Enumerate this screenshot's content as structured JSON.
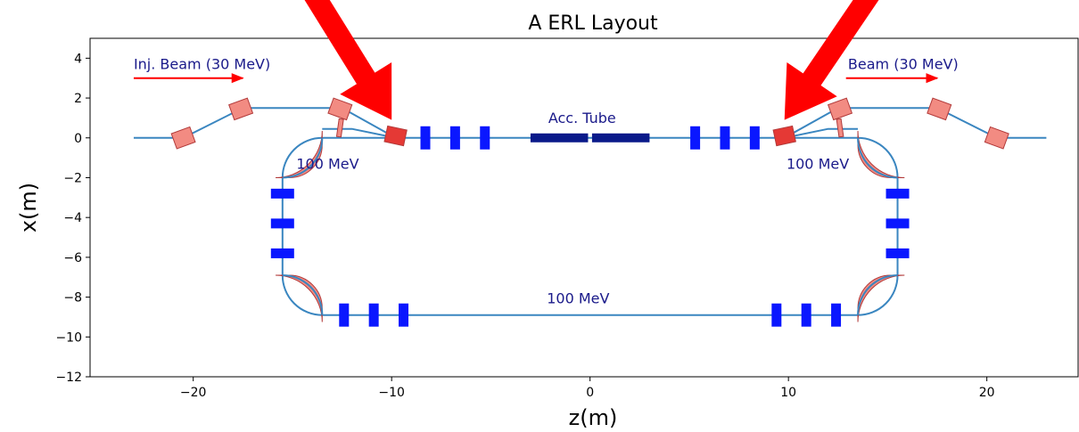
{
  "title": "A ERL Layout",
  "xlabel": "z(m)",
  "ylabel": "x(m)",
  "xlim": [
    -25.2,
    24.6
  ],
  "ylim": [
    -12,
    5
  ],
  "xticks": [
    -20,
    -10,
    0,
    10,
    20
  ],
  "yticks": [
    4,
    2,
    0,
    -2,
    -4,
    -6,
    -8,
    -10,
    -12
  ],
  "xtick_labels": [
    "−20",
    "−10",
    "0",
    "10",
    "20"
  ],
  "ytick_labels": [
    "4",
    "2",
    "0",
    "−2",
    "−4",
    "−6",
    "−8",
    "−10",
    "−12"
  ],
  "colors": {
    "beamline": "#3a86c0",
    "dipole_fill": "#f28b82",
    "dipole_highlight": "#e53935",
    "dipole_edge": "#b23a3a",
    "quad": "#0a17ff",
    "cavity": "#0a1a8a",
    "annotation": "#1a1a8a",
    "arrow": "#ff0000"
  },
  "annotations": {
    "inj_beam": "Inj. Beam (30 MeV)",
    "ext_beam": "Beam (30 MeV)",
    "acc_tube": "Acc. Tube",
    "energy_left": "100 MeV",
    "energy_right": "100 MeV",
    "energy_bottom": "100 MeV"
  },
  "beamline": {
    "arc_radius": 2,
    "top_z_range": [
      -15.5,
      15.5
    ],
    "bottom_x": -8.9,
    "left_z": -15.5,
    "right_z": 15.5,
    "injection": [
      [
        -23,
        0
      ],
      [
        -20.5,
        0
      ],
      [
        -17.5,
        1.5
      ],
      [
        -12.5,
        1.5
      ],
      [
        -9.8,
        0
      ]
    ],
    "extraction": [
      [
        9.8,
        0
      ],
      [
        12.5,
        1.5
      ],
      [
        17.5,
        1.5
      ],
      [
        20.5,
        0
      ],
      [
        23,
        0
      ]
    ],
    "chicane_left": [
      [
        -13.5,
        0.45
      ],
      [
        -12.0,
        0.45
      ],
      [
        -9.8,
        0
      ]
    ],
    "chicane_right": [
      [
        9.8,
        0
      ],
      [
        12.0,
        0.45
      ],
      [
        13.5,
        0.45
      ]
    ]
  },
  "quads_horizontal": [
    {
      "z": -8.3,
      "x": 0
    },
    {
      "z": -6.8,
      "x": 0
    },
    {
      "z": -5.3,
      "x": 0
    },
    {
      "z": 5.3,
      "x": 0
    },
    {
      "z": 6.8,
      "x": 0
    },
    {
      "z": 8.3,
      "x": 0
    },
    {
      "z": -12.4,
      "x": -8.9
    },
    {
      "z": -10.9,
      "x": -8.9
    },
    {
      "z": -9.4,
      "x": -8.9
    },
    {
      "z": 9.4,
      "x": -8.9
    },
    {
      "z": 10.9,
      "x": -8.9
    },
    {
      "z": 12.4,
      "x": -8.9
    }
  ],
  "quads_vertical": [
    {
      "z": -15.5,
      "x": -2.8
    },
    {
      "z": -15.5,
      "x": -4.3
    },
    {
      "z": -15.5,
      "x": -5.8
    },
    {
      "z": 15.5,
      "x": -2.8
    },
    {
      "z": 15.5,
      "x": -4.3
    },
    {
      "z": 15.5,
      "x": -5.8
    }
  ],
  "cavities": [
    {
      "z0": -3.0,
      "z1": -0.1
    },
    {
      "z0": 0.1,
      "z1": 3.0
    }
  ],
  "small_dipoles": [
    {
      "z": -20.5,
      "x": 0.0,
      "angle": -20,
      "highlight": false
    },
    {
      "z": -17.6,
      "x": 1.45,
      "angle": -20,
      "highlight": false
    },
    {
      "z": -12.6,
      "x": 1.45,
      "angle": 20,
      "highlight": false
    },
    {
      "z": -9.8,
      "x": 0.1,
      "angle": 12,
      "highlight": true
    },
    {
      "z": 9.8,
      "x": 0.1,
      "angle": -12,
      "highlight": true
    },
    {
      "z": 12.6,
      "x": 1.45,
      "angle": -20,
      "highlight": false
    },
    {
      "z": 17.6,
      "x": 1.45,
      "angle": 20,
      "highlight": false
    },
    {
      "z": 20.5,
      "x": 0.0,
      "angle": 20,
      "highlight": false
    }
  ],
  "thin_dipoles": [
    {
      "z": -12.6,
      "x": 0.5,
      "angle": 8
    },
    {
      "z": 12.6,
      "x": 0.5,
      "angle": -8
    }
  ],
  "pointer_arrows": [
    {
      "from": [
        -14.3,
        7.8
      ],
      "to": [
        -10.0,
        0.9
      ]
    },
    {
      "from": [
        14.5,
        7.8
      ],
      "to": [
        9.8,
        0.9
      ]
    }
  ]
}
